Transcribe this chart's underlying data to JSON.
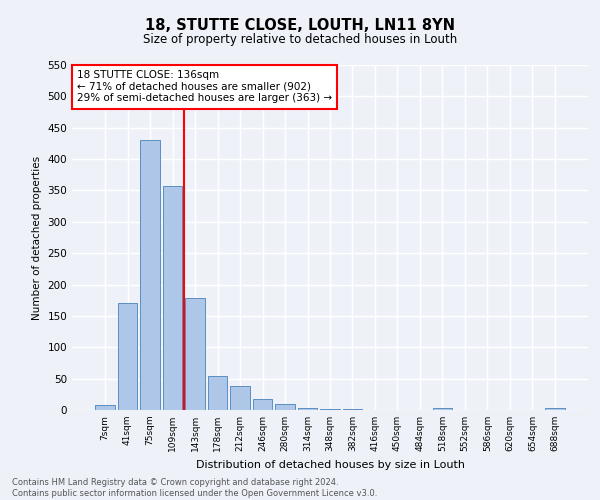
{
  "title": "18, STUTTE CLOSE, LOUTH, LN11 8YN",
  "subtitle": "Size of property relative to detached houses in Louth",
  "xlabel": "Distribution of detached houses by size in Louth",
  "ylabel": "Number of detached properties",
  "bar_labels": [
    "7sqm",
    "41sqm",
    "75sqm",
    "109sqm",
    "143sqm",
    "178sqm",
    "212sqm",
    "246sqm",
    "280sqm",
    "314sqm",
    "348sqm",
    "382sqm",
    "416sqm",
    "450sqm",
    "484sqm",
    "518sqm",
    "552sqm",
    "586sqm",
    "620sqm",
    "654sqm",
    "688sqm"
  ],
  "bar_values": [
    8,
    170,
    430,
    357,
    178,
    55,
    38,
    18,
    10,
    3,
    2,
    1,
    0,
    0,
    0,
    3,
    0,
    0,
    0,
    0,
    3
  ],
  "bar_color": "#aec6e8",
  "bar_edge_color": "#5a8fc2",
  "vline_index": 3.5,
  "vline_color": "red",
  "annotation_line1": "18 STUTTE CLOSE: 136sqm",
  "annotation_line2": "← 71% of detached houses are smaller (902)",
  "annotation_line3": "29% of semi-detached houses are larger (363) →",
  "annotation_box_color": "white",
  "annotation_box_edge_color": "red",
  "ylim": [
    0,
    550
  ],
  "yticks": [
    0,
    50,
    100,
    150,
    200,
    250,
    300,
    350,
    400,
    450,
    500,
    550
  ],
  "footer_line1": "Contains HM Land Registry data © Crown copyright and database right 2024.",
  "footer_line2": "Contains public sector information licensed under the Open Government Licence v3.0.",
  "bg_color": "#eef2f8",
  "grid_color": "white"
}
